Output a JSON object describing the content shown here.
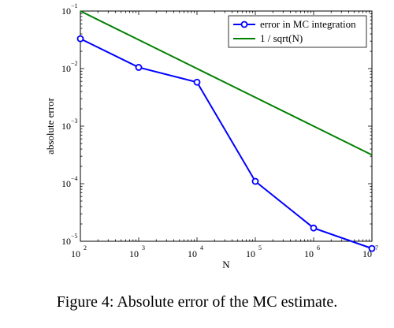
{
  "chart_data": {
    "type": "line",
    "xscale": "log",
    "yscale": "log",
    "x": [
      100,
      1000,
      10000,
      100000,
      1000000,
      10000000
    ],
    "xlim": [
      100,
      10000000
    ],
    "ylim": [
      1e-05,
      0.1
    ],
    "xlabel": "N",
    "ylabel": "absolute error",
    "x_ticks": [
      {
        "base": "10",
        "exp": "2"
      },
      {
        "base": "10",
        "exp": "3"
      },
      {
        "base": "10",
        "exp": "4"
      },
      {
        "base": "10",
        "exp": "5"
      },
      {
        "base": "10",
        "exp": "6"
      },
      {
        "base": "10",
        "exp": "7"
      }
    ],
    "y_ticks": [
      {
        "base": "10",
        "exp": "−5"
      },
      {
        "base": "10",
        "exp": "−4"
      },
      {
        "base": "10",
        "exp": "−3"
      },
      {
        "base": "10",
        "exp": "−2"
      },
      {
        "base": "10",
        "exp": "−1"
      }
    ],
    "legend_position": "top-right",
    "series": [
      {
        "name": "error in MC integration",
        "color": "#0000ff",
        "marker": "circle",
        "values": [
          0.033,
          0.0105,
          0.0058,
          0.00011,
          1.7e-05,
          7.5e-06
        ]
      },
      {
        "name": "1 / sqrt(N)",
        "color": "#008000",
        "marker": "none",
        "values": [
          0.1,
          0.0316,
          0.01,
          0.00316,
          0.001,
          0.000316
        ]
      }
    ]
  },
  "caption": "Figure 4: Absolute error of the MC estimate."
}
